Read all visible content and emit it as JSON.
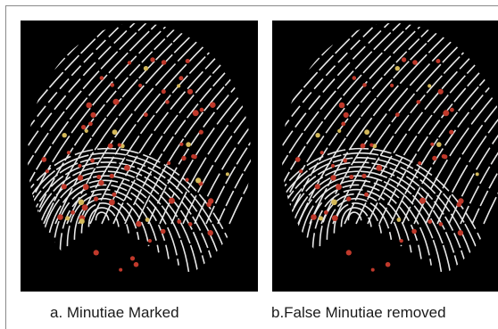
{
  "figure": {
    "panels": [
      {
        "id": "a",
        "caption": "a. Minutiae Marked",
        "content": "fingerprint skeleton with marked minutiae"
      },
      {
        "id": "b",
        "caption": "b.False Minutiae removed",
        "content": "fingerprint skeleton with false minutiae removed"
      }
    ],
    "colors": {
      "background": "#000000",
      "ridge": "#e8e8e8",
      "minutia": "#c0392b",
      "minutia_alt": "#d4b95a",
      "page": "#ffffff",
      "caption_text": "#1a1a1a"
    }
  }
}
